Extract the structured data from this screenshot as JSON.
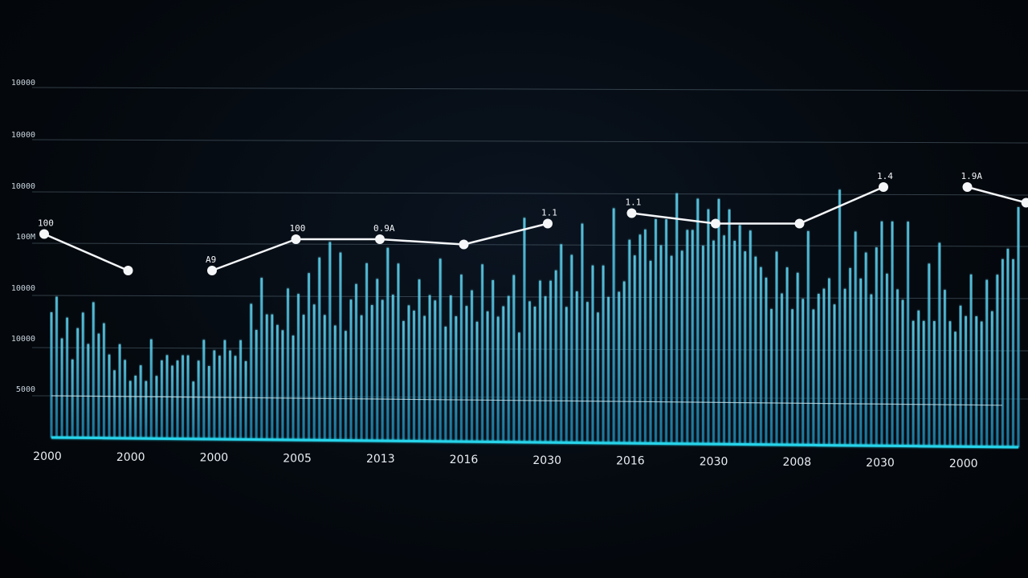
{
  "chart_data": {
    "type": "bar",
    "title": "",
    "xlabel": "",
    "ylabel": "",
    "grid": true,
    "y_tick_labels": [
      "",
      "5000",
      "10000",
      "10000",
      "100M",
      "10000",
      "10000",
      "10000"
    ],
    "x_tick_labels": [
      "2000",
      "2000",
      "2000",
      "2005",
      "2013",
      "2016",
      "2030",
      "2016",
      "2030",
      "2008",
      "2030",
      "2000"
    ],
    "threshold_value": 0.8,
    "colors": {
      "bars": "#2fa8cf",
      "bars_bright": "#5fd2ee",
      "baseline": "#28d4ea",
      "line": "#f4f6f8",
      "grid": "#8aa0b0",
      "background": "#04080d"
    },
    "series": [
      {
        "type": "bar",
        "values": [
          2.4,
          2.7,
          1.9,
          2.3,
          1.5,
          2.1,
          2.4,
          1.8,
          2.6,
          2.0,
          2.2,
          1.6,
          1.3,
          1.8,
          1.5,
          1.1,
          1.2,
          1.4,
          1.1,
          1.9,
          1.2,
          1.5,
          1.6,
          1.4,
          1.5,
          1.6,
          1.6,
          1.1,
          1.5,
          1.9,
          1.4,
          1.7,
          1.6,
          1.9,
          1.7,
          1.6,
          1.9,
          1.5,
          2.6,
          2.1,
          3.1,
          2.4,
          2.4,
          2.2,
          2.1,
          2.9,
          2.0,
          2.8,
          2.4,
          3.2,
          2.6,
          3.5,
          2.4,
          3.8,
          2.2,
          3.6,
          2.1,
          2.7,
          3.0,
          2.4,
          3.4,
          2.6,
          3.1,
          2.7,
          3.7,
          2.8,
          3.4,
          2.3,
          2.6,
          2.5,
          3.1,
          2.4,
          2.8,
          2.7,
          3.5,
          2.2,
          2.8,
          2.4,
          3.2,
          2.6,
          2.9,
          2.3,
          3.4,
          2.5,
          3.1,
          2.4,
          2.6,
          2.8,
          3.2,
          2.1,
          4.3,
          2.7,
          2.6,
          3.1,
          2.8,
          3.1,
          3.3,
          3.8,
          2.6,
          3.6,
          2.9,
          4.2,
          2.7,
          3.4,
          2.5,
          3.4,
          2.8,
          4.5,
          2.9,
          3.1,
          3.9,
          3.6,
          4.0,
          4.1,
          3.5,
          4.3,
          3.8,
          4.3,
          3.6,
          4.8,
          3.7,
          4.1,
          4.1,
          4.7,
          3.8,
          4.5,
          3.9,
          4.7,
          4.0,
          4.5,
          3.9,
          4.2,
          3.7,
          4.1,
          3.6,
          3.4,
          3.2,
          2.6,
          3.7,
          2.9,
          3.4,
          2.6,
          3.3,
          2.8,
          4.1,
          2.6,
          2.9,
          3.0,
          3.2,
          2.7,
          4.9,
          3.0,
          3.4,
          4.1,
          3.2,
          3.7,
          2.9,
          3.8,
          4.3,
          3.3,
          4.3,
          3.0,
          2.8,
          4.3,
          2.4,
          2.6,
          2.4,
          3.5,
          2.4,
          3.9,
          3.0,
          2.4,
          2.2,
          2.7,
          2.5,
          3.3,
          2.5,
          2.4,
          3.2,
          2.6,
          3.3,
          3.6,
          3.8,
          3.6,
          4.6
        ]
      },
      {
        "type": "line",
        "segments": [
          {
            "points": [
              {
                "x": 0,
                "y": 3.9,
                "label": "100"
              },
              {
                "x": 1,
                "y": 3.2
              }
            ]
          },
          {
            "points": [
              {
                "x": 2,
                "y": 3.2,
                "label": "A9"
              },
              {
                "x": 3,
                "y": 3.8,
                "label": "100"
              },
              {
                "x": 4,
                "y": 3.8,
                "label": "0.9A"
              },
              {
                "x": 5,
                "y": 3.7
              },
              {
                "x": 6,
                "y": 4.1,
                "label": "1.1"
              }
            ]
          },
          {
            "points": [
              {
                "x": 7,
                "y": 4.3,
                "label": "1.1"
              },
              {
                "x": 8,
                "y": 4.1
              },
              {
                "x": 9,
                "y": 4.1
              },
              {
                "x": 10,
                "y": 4.8,
                "label": "1.4"
              }
            ]
          },
          {
            "points": [
              {
                "x": 11,
                "y": 4.8,
                "label": "1.9A"
              },
              {
                "x": 11.7,
                "y": 4.5
              }
            ]
          }
        ]
      }
    ]
  }
}
